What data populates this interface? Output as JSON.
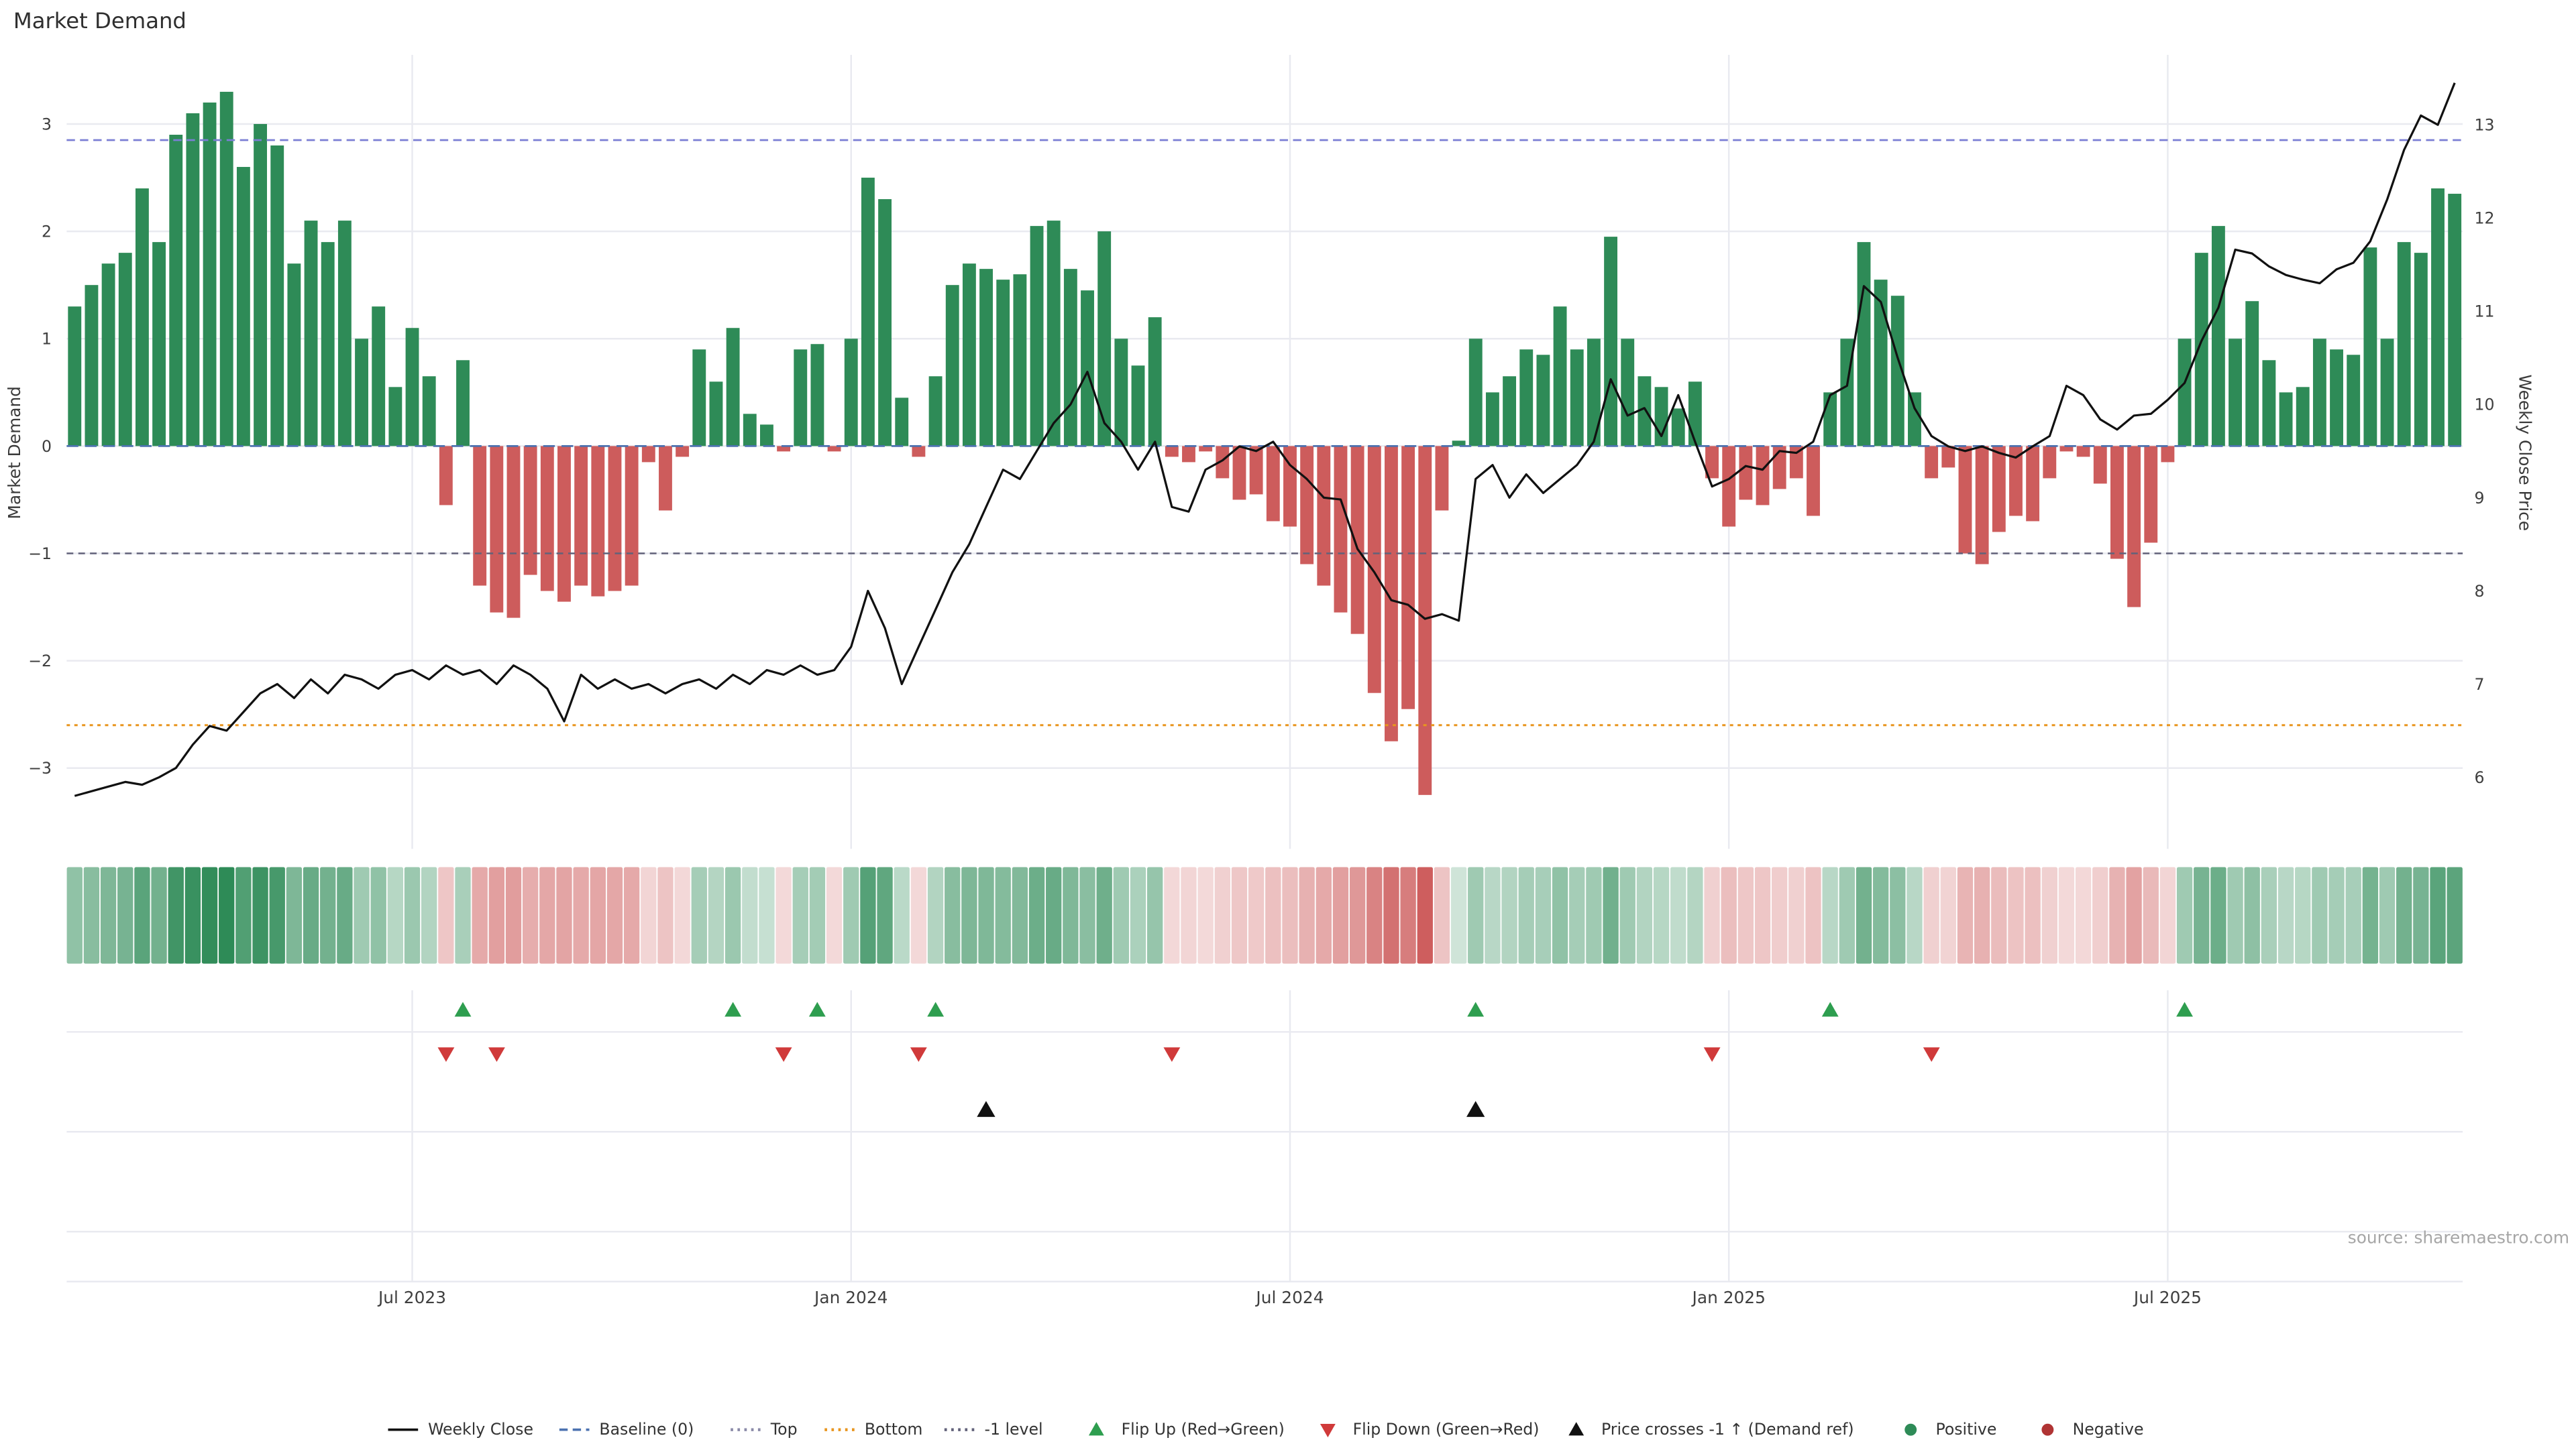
{
  "title": "Market Demand",
  "source": "source: sharemaestro.com",
  "axes": {
    "left_title": "Market Demand",
    "right_title": "Weekly Close Price",
    "left_tick_labels": [
      "3",
      "2",
      "1",
      "0",
      "−1",
      "−2",
      "−3"
    ],
    "right_tick_labels": [
      "13",
      "12",
      "11",
      "10",
      "9",
      "8",
      "7",
      "6"
    ]
  },
  "colors": {
    "positive": "#2e8b57",
    "negative": "#cd5c5c",
    "weekly_close": "#111111",
    "baseline": "#4c72b0",
    "top": "#7b7fd4",
    "bottom": "#e8951e",
    "minus1": "#62627a",
    "flip_up": "#2e9e4f",
    "flip_down": "#d03a3a",
    "price_cross": "#111111",
    "grid": "#e9eaf0"
  },
  "legend": [
    {
      "label": "Weekly Close",
      "symbol": "line",
      "color": "#111111"
    },
    {
      "label": "Baseline (0)",
      "symbol": "dash",
      "color": "#4c72b0"
    },
    {
      "label": "Top",
      "symbol": "dots",
      "color": "#8a8aa8"
    },
    {
      "label": "Bottom",
      "symbol": "dots",
      "color": "#e8951e"
    },
    {
      "label": "-1 level",
      "symbol": "dots",
      "color": "#62627a"
    },
    {
      "label": "Flip Up (Red→Green)",
      "symbol": "tri-up",
      "color": "#2e9e4f"
    },
    {
      "label": "Flip Down (Green→Red)",
      "symbol": "tri-down",
      "color": "#d03a3a"
    },
    {
      "label": "Price crosses -1 ↑ (Demand ref)",
      "symbol": "tri-up",
      "color": "#111111"
    },
    {
      "label": "Positive",
      "symbol": "dot",
      "color": "#2e8b57"
    },
    {
      "label": "Negative",
      "symbol": "dot",
      "color": "#b03434"
    }
  ],
  "chart_data": {
    "type": "combo",
    "x": {
      "unit": "week",
      "count": 142,
      "ticks": [
        {
          "week": 20,
          "label": "Jul 2023"
        },
        {
          "week": 46,
          "label": "Jan 2024"
        },
        {
          "week": 72,
          "label": "Jul 2024"
        },
        {
          "week": 98,
          "label": "Jan 2025"
        },
        {
          "week": 124,
          "label": "Jul 2025"
        }
      ]
    },
    "left_axis": {
      "label": "Market Demand",
      "ticks": [
        3,
        2,
        1,
        0,
        -1,
        -2,
        -3
      ],
      "range": [
        -3.75,
        3.64
      ]
    },
    "right_axis": {
      "label": "Weekly Close Price",
      "ticks": [
        13,
        12,
        11,
        10,
        9,
        8,
        7,
        6
      ],
      "range": [
        5.23,
        13.75
      ]
    },
    "reference_lines": {
      "baseline": 0,
      "top": 2.85,
      "bottom": -2.6,
      "minus1_level": -1
    },
    "series": [
      {
        "name": "Market Demand",
        "type": "bar",
        "axis": "left",
        "values": [
          1.3,
          1.5,
          1.7,
          1.8,
          2.4,
          1.9,
          2.9,
          3.1,
          3.2,
          3.3,
          2.6,
          3.0,
          2.8,
          1.7,
          2.1,
          1.9,
          2.1,
          1.0,
          1.3,
          0.55,
          1.1,
          0.65,
          -0.55,
          0.8,
          -1.3,
          -1.55,
          -1.6,
          -1.2,
          -1.35,
          -1.45,
          -1.3,
          -1.4,
          -1.35,
          -1.3,
          -0.15,
          -0.6,
          -0.1,
          0.9,
          0.6,
          1.1,
          0.3,
          0.2,
          -0.05,
          0.9,
          0.95,
          -0.05,
          1.0,
          2.5,
          2.3,
          0.45,
          -0.1,
          0.65,
          1.5,
          1.7,
          1.65,
          1.55,
          1.6,
          2.05,
          2.1,
          1.65,
          1.45,
          2.0,
          1.0,
          0.75,
          1.2,
          -0.1,
          -0.15,
          -0.05,
          -0.3,
          -0.5,
          -0.45,
          -0.7,
          -0.75,
          -1.1,
          -1.3,
          -1.55,
          -1.75,
          -2.3,
          -2.75,
          -2.45,
          -3.25,
          -0.6,
          0.05,
          1.0,
          0.5,
          0.65,
          0.9,
          0.85,
          1.3,
          0.9,
          1.0,
          1.95,
          1.0,
          0.65,
          0.55,
          0.35,
          0.6,
          -0.3,
          -0.75,
          -0.5,
          -0.55,
          -0.4,
          -0.3,
          -0.65,
          0.5,
          1.0,
          1.9,
          1.55,
          1.4,
          0.5,
          -0.3,
          -0.2,
          -1.0,
          -1.1,
          -0.8,
          -0.65,
          -0.7,
          -0.3,
          -0.05,
          -0.1,
          -0.35,
          -1.05,
          -1.5,
          -0.9,
          -0.15,
          1.0,
          1.8,
          2.05,
          1.0,
          1.35,
          0.8,
          0.5,
          0.55,
          1.0,
          0.9,
          0.85,
          1.85,
          1.0,
          1.9,
          1.8,
          2.4,
          2.35
        ]
      },
      {
        "name": "Weekly Close",
        "type": "line",
        "axis": "right",
        "values": [
          5.8,
          5.85,
          5.9,
          5.95,
          5.92,
          6.0,
          6.1,
          6.35,
          6.55,
          6.5,
          6.7,
          6.9,
          7.0,
          6.85,
          7.05,
          6.9,
          7.1,
          7.05,
          6.95,
          7.1,
          7.15,
          7.05,
          7.2,
          7.1,
          7.15,
          7.0,
          7.2,
          7.1,
          6.95,
          6.6,
          7.1,
          6.95,
          7.05,
          6.95,
          7.0,
          6.9,
          7.0,
          7.05,
          6.95,
          7.1,
          7.0,
          7.15,
          7.1,
          7.2,
          7.1,
          7.15,
          7.4,
          8.0,
          7.6,
          7.0,
          7.4,
          7.8,
          8.2,
          8.5,
          8.9,
          9.3,
          9.2,
          9.5,
          9.8,
          10.0,
          10.35,
          9.8,
          9.6,
          9.3,
          9.6,
          8.9,
          8.85,
          9.3,
          9.4,
          9.55,
          9.5,
          9.6,
          9.35,
          9.2,
          9.0,
          8.98,
          8.45,
          8.2,
          7.9,
          7.85,
          7.7,
          7.75,
          7.68,
          9.2,
          9.35,
          9.0,
          9.25,
          9.05,
          9.2,
          9.35,
          9.6,
          10.27,
          9.88,
          9.96,
          9.66,
          10.1,
          9.6,
          9.12,
          9.2,
          9.34,
          9.3,
          9.5,
          9.48,
          9.6,
          10.1,
          10.2,
          11.27,
          11.1,
          10.5,
          9.96,
          9.66,
          9.55,
          9.5,
          9.55,
          9.48,
          9.43,
          9.55,
          9.66,
          10.2,
          10.1,
          9.84,
          9.73,
          9.88,
          9.9,
          10.05,
          10.23,
          10.68,
          11.04,
          11.66,
          11.62,
          11.48,
          11.39,
          11.34,
          11.3,
          11.45,
          11.52,
          11.75,
          12.2,
          12.73,
          13.1,
          13.0,
          13.45
        ]
      }
    ],
    "markers": {
      "flip_up_weeks": [
        23,
        39,
        44,
        51,
        83,
        104,
        125
      ],
      "flip_down_weeks": [
        22,
        25,
        42,
        50,
        65,
        97,
        110
      ],
      "price_cross_weeks": [
        54,
        83
      ]
    }
  }
}
